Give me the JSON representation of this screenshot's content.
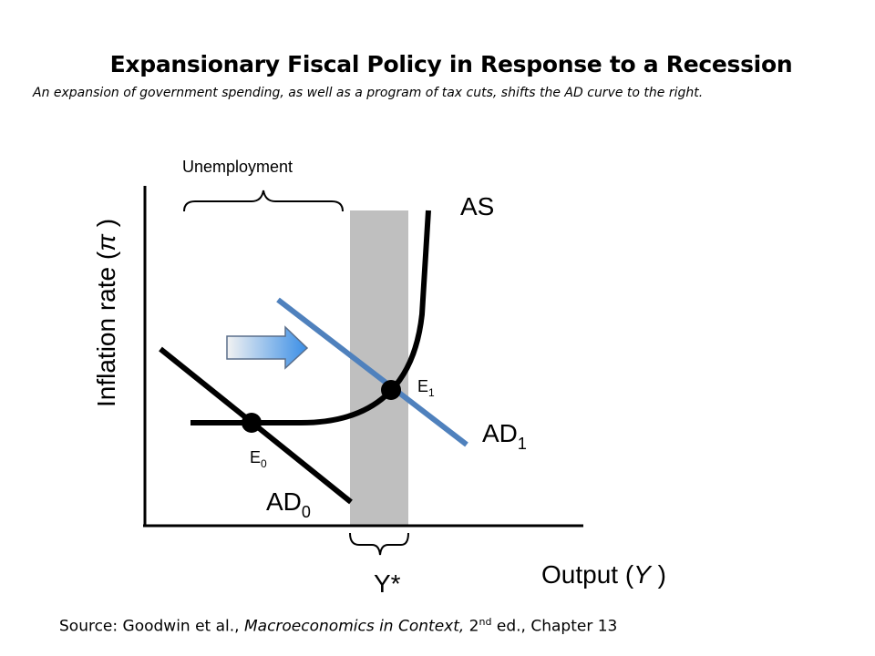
{
  "title": "Expansionary Fiscal Policy in Response to a Recession",
  "subtitle": "An expansion of government spending, as well as a program of tax cuts, shifts the AD curve to the right.",
  "source": {
    "prefix": "Source: Goodwin et al., ",
    "book": "Macroeconomics in Context,",
    "edition_num": " 2",
    "edition_sup": "nd",
    "suffix": " ed., Chapter 13"
  },
  "diagram": {
    "y_axis_label": "Inflation rate (",
    "y_axis_symbol": "π",
    "y_axis_close": " )",
    "x_axis_label": "Output (",
    "x_axis_symbol": "Y",
    "x_axis_close": " )",
    "unemployment_label": "Unemployment",
    "potential_output_label": "Y*",
    "as_label": "AS",
    "ad0_label": "AD",
    "ad0_sub": "0",
    "ad1_label": "AD",
    "ad1_sub": "1",
    "e0_label": "E",
    "e0_sub": "0",
    "e1_label": "E",
    "e1_sub": "1",
    "colors": {
      "ad1_line": "#4f81bd",
      "full_employment_band": "#bfbfbf",
      "arrow_start": "#f2f2f2",
      "arrow_end": "#3a8ee6"
    }
  }
}
